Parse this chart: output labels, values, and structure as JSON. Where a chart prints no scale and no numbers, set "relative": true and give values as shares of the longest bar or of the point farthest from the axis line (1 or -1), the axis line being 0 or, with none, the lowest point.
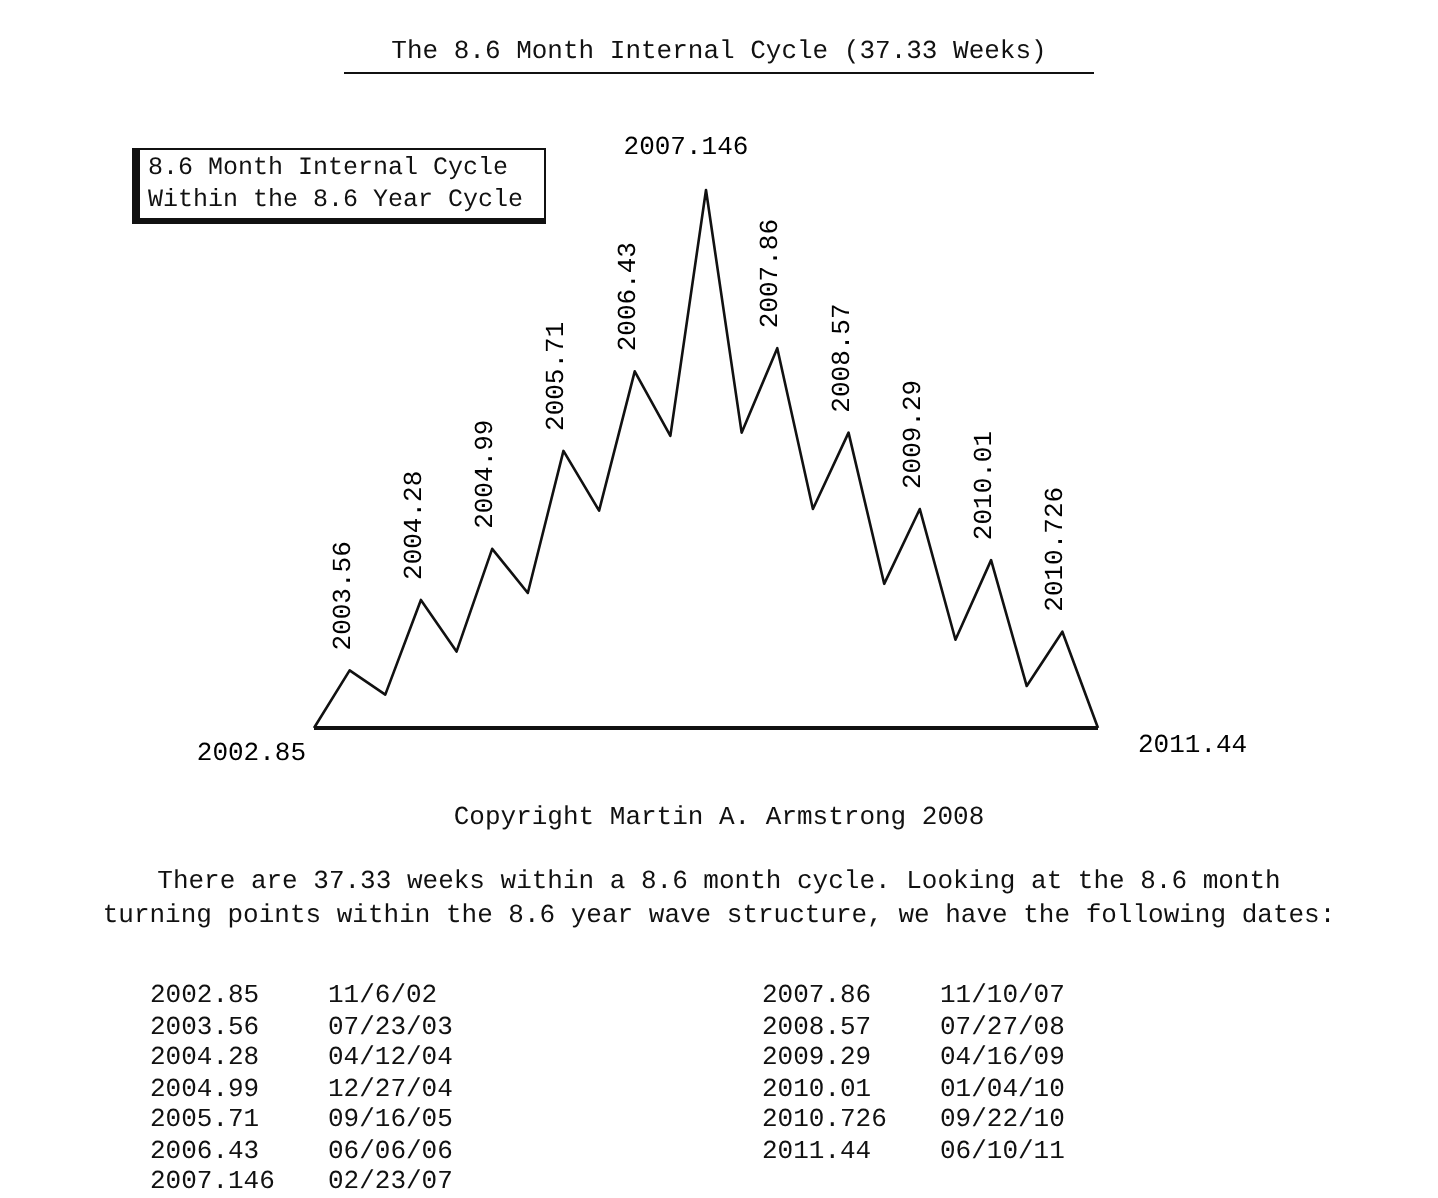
{
  "chart_data": {
    "type": "line",
    "title": "The 8.6 Month Internal Cycle (37.33 Weeks)",
    "relative": true,
    "grid": false,
    "marker": "none",
    "line_style": "solid",
    "categories": [
      null,
      null,
      null,
      null,
      null,
      null,
      null,
      null,
      null,
      null,
      null,
      null,
      null,
      null,
      null,
      null,
      null,
      null,
      null,
      null,
      null,
      null,
      null
    ],
    "series": [
      {
        "color": "#111111",
        "values": [
          0,
          0.107,
          0.062,
          0.238,
          0.142,
          0.333,
          0.251,
          0.515,
          0.404,
          0.663,
          0.543,
          1,
          0.549,
          0.706,
          0.407,
          0.549,
          0.268,
          0.407,
          0.164,
          0.312,
          0.078,
          0.179,
          0
        ]
      }
    ],
    "annotations": [
      "8.6 Month Internal Cycle\nWithin the 8.6 Year Cycle",
      "Copyright Martin A. Armstrong 2008",
      "There are 37.33 weeks within a 8.6 month cycle. Looking at the 8.6 month\nturning points within the 8.6 year wave structure, we have the following dates:",
      "2002.85 11/6/02",
      "2003.56 07/23/03",
      "2004.28 04/12/04",
      "2004.99 12/27/04",
      "2005.71 09/16/05",
      "2006.43 06/06/06",
      "2007.146 02/23/07",
      "2007.86 11/10/07",
      "2008.57 07/27/08",
      "2009.29 04/16/09",
      "2010.01 01/04/10",
      "2010.726 09/22/10",
      "2011.44 06/10/11",
      "2002.85",
      "2003.56",
      "2004.28",
      "2004.99",
      "2005.71",
      "2006.43",
      "2007.146",
      "2007.86",
      "2008.57",
      "2009.29",
      "2010.01",
      "2010.726",
      "2011.44"
    ]
  }
}
